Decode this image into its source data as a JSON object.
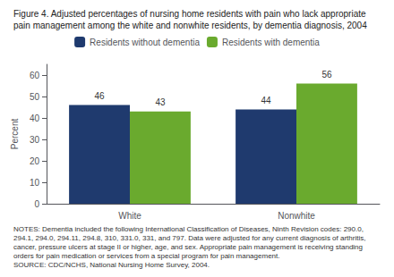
{
  "chart_data": {
    "type": "bar",
    "title": "Figure 4. Adjusted percentages of nursing home residents with pain who lack appropriate pain management among the white and nonwhite residents, by dementia diagnosis, 2004",
    "categories": [
      "White",
      "Nonwhite"
    ],
    "series": [
      {
        "name": "Residents without dementia",
        "color": "#1f3a6e",
        "values": [
          46,
          44
        ]
      },
      {
        "name": "Residents with dementia",
        "color": "#6aaa2e",
        "values": [
          43,
          56
        ]
      }
    ],
    "ylabel": "Percent",
    "ylim": [
      0,
      65
    ],
    "yticks": [
      0,
      10,
      20,
      30,
      40,
      50,
      60
    ],
    "grid": false,
    "data_labels": true,
    "annotations": [
      "NOTES: Dementia included the following International Classification of Diseases, Ninth Revision codes: 290.0, 294.1, 294.0, 294.11, 294.8, 310, 331.0, 331, and 797. Data were adjusted for any current diagnosis of arthritis, cancer, pressure ulcers at stage II or higher, age, and sex. Appropriate pain management is receiving standing orders for pain medication or services from a special program for pain management.",
      "SOURCE: CDC/NCHS, National Nursing Home Survey, 2004."
    ]
  }
}
